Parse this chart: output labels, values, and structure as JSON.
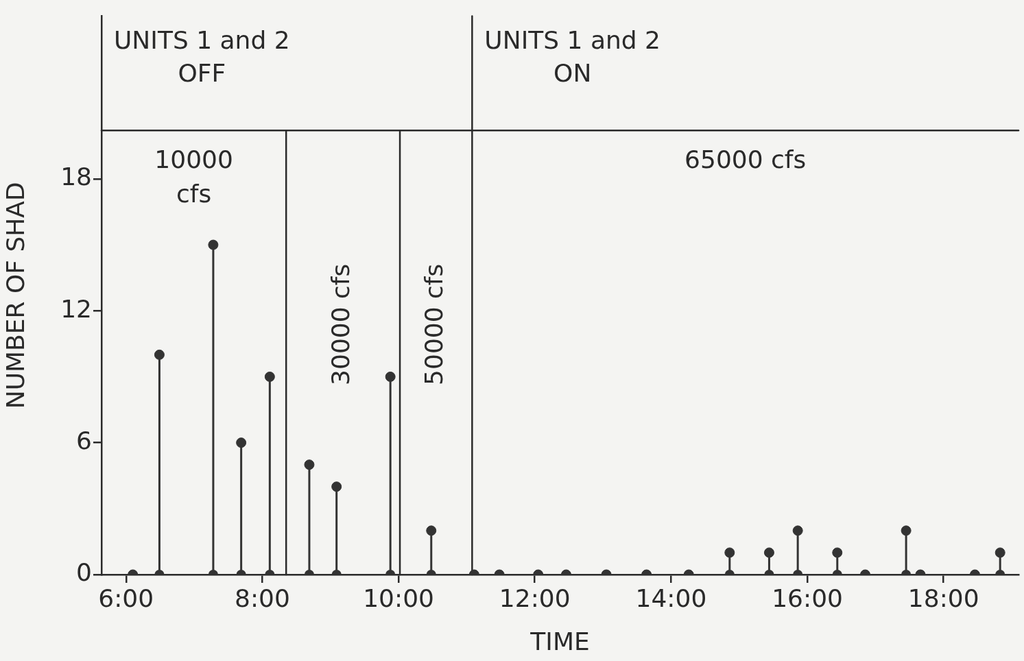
{
  "chart_data": {
    "type": "lollipop",
    "xlabel": "TIME",
    "ylabel": "NUMBER OF SHAD",
    "x": [
      6.1,
      6.49,
      7.28,
      7.69,
      8.11,
      8.69,
      9.09,
      9.88,
      10.48,
      11.11,
      11.48,
      12.05,
      12.46,
      13.05,
      13.64,
      14.26,
      14.86,
      15.44,
      15.86,
      16.44,
      16.85,
      17.45,
      17.66,
      18.46,
      18.83
    ],
    "series": [
      {
        "color": "#333333",
        "values": [
          0,
          10,
          15,
          6,
          9,
          5,
          4,
          9,
          2,
          0,
          0,
          0,
          0,
          0,
          0,
          0,
          1,
          1,
          2,
          1,
          0,
          2,
          0,
          0,
          1
        ]
      },
      {
        "type": "scatter",
        "color": "#333333",
        "values": [
          0,
          0,
          0,
          0,
          0,
          0,
          0,
          0,
          0,
          0,
          0,
          0,
          0,
          0,
          0,
          0,
          0,
          0,
          0,
          0,
          0,
          0,
          0,
          0,
          0
        ]
      }
    ],
    "marker": "circle",
    "grid": false,
    "legend": false,
    "xlim": [
      5.64,
      19.1
    ],
    "xticks": [
      {
        "value": 6,
        "label": "6:00"
      },
      {
        "value": 8,
        "label": "8:00"
      },
      {
        "value": 10,
        "label": "10:00"
      },
      {
        "value": 12,
        "label": "12:00"
      },
      {
        "value": 14,
        "label": "14:00"
      },
      {
        "value": 16,
        "label": "16:00"
      },
      {
        "value": 18,
        "label": "18:00"
      }
    ],
    "ylim": [
      0,
      25.4
    ],
    "yticks": [
      0,
      6,
      12,
      18
    ],
    "ref_lines": [
      {
        "axis": "y",
        "value": 20.2
      },
      {
        "axis": "x",
        "value": 8.35
      },
      {
        "axis": "x",
        "value": 10.02
      },
      {
        "axis": "x",
        "value": 11.08
      }
    ],
    "annotations": [
      "UNITS 1 and 2\nOFF",
      "UNITS 1 and 2\nON",
      "10000\ncfs",
      "30000 cfs",
      "50000 cfs",
      "65000 cfs"
    ]
  }
}
